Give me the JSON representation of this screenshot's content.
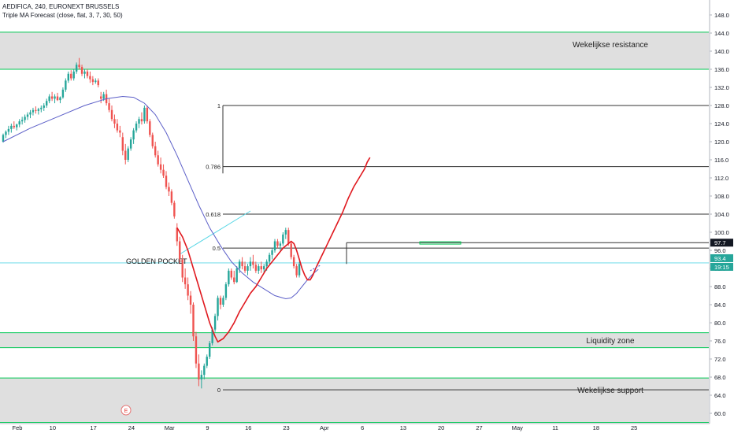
{
  "header": {
    "title": "AEDIFICA, 240, EURONEXT BRUSSELS",
    "indicator": "Triple MA Forecast (close, flat, 3, 7, 30, 50)"
  },
  "chart_data": {
    "type": "candlestick",
    "ylim": [
      58,
      150
    ],
    "y_ticks": [
      "60.0",
      "64.0",
      "68.0",
      "72.0",
      "76.0",
      "80.0",
      "84.0",
      "88.0",
      "92.0",
      "96.0",
      "100.0",
      "104.0",
      "108.0",
      "112.0",
      "116.0",
      "120.0",
      "124.0",
      "128.0",
      "132.0",
      "136.0",
      "140.0",
      "144.0",
      "148.0"
    ],
    "x_ticks": [
      {
        "label": "Feb",
        "idx": 0
      },
      {
        "label": "10",
        "idx": 13
      },
      {
        "label": "17",
        "idx": 28
      },
      {
        "label": "24",
        "idx": 42
      },
      {
        "label": "Mar",
        "idx": 56
      },
      {
        "label": "9",
        "idx": 70
      },
      {
        "label": "16",
        "idx": 85
      },
      {
        "label": "23",
        "idx": 99
      },
      {
        "label": "Apr",
        "idx": 113
      },
      {
        "label": "6",
        "idx": 127
      },
      {
        "label": "13",
        "idx": 142
      },
      {
        "label": "20",
        "idx": 156
      },
      {
        "label": "27",
        "idx": 170
      },
      {
        "label": "May",
        "idx": 184
      },
      {
        "label": "11",
        "idx": 198
      },
      {
        "label": "18",
        "idx": 213
      },
      {
        "label": "25",
        "idx": 227
      }
    ],
    "candles": [
      [
        120,
        121.8,
        119.8,
        121.5
      ],
      [
        121.5,
        122.5,
        120.8,
        122.2
      ],
      [
        122.2,
        123.5,
        121.5,
        122.8
      ],
      [
        122.8,
        124,
        122,
        123.5
      ],
      [
        123.5,
        124.5,
        122.8,
        123.2
      ],
      [
        123.2,
        124,
        122.5,
        123.8
      ],
      [
        123.8,
        125,
        123.2,
        124.5
      ],
      [
        124.5,
        125.5,
        123.8,
        124.8
      ],
      [
        124.8,
        126,
        124.2,
        125.5
      ],
      [
        125.5,
        126.5,
        124.8,
        126
      ],
      [
        126,
        127,
        125.2,
        126.5
      ],
      [
        126.5,
        127.5,
        125.8,
        127
      ],
      [
        127,
        127.8,
        126.2,
        126.8
      ],
      [
        126.8,
        127.5,
        126,
        127.2
      ],
      [
        127.2,
        128,
        126.5,
        127.5
      ],
      [
        127.5,
        128.5,
        126.8,
        128
      ],
      [
        128,
        129.5,
        127.5,
        129
      ],
      [
        129,
        130.5,
        128.5,
        130
      ],
      [
        130,
        131,
        129,
        129.5
      ],
      [
        129.5,
        130.5,
        128.5,
        130
      ],
      [
        130,
        130.8,
        129,
        129.2
      ],
      [
        129.2,
        130,
        128.5,
        129.8
      ],
      [
        129.8,
        132,
        129.5,
        131.5
      ],
      [
        131.5,
        134,
        131,
        133.5
      ],
      [
        133.5,
        135.5,
        133,
        135
      ],
      [
        135,
        135.8,
        133.5,
        134
      ],
      [
        134,
        136,
        133.5,
        135.5
      ],
      [
        135.5,
        137.5,
        135,
        137
      ],
      [
        137,
        138.5,
        136,
        136.5
      ],
      [
        136.5,
        137,
        134.5,
        135
      ],
      [
        135,
        136,
        134,
        135.5
      ],
      [
        135.5,
        136,
        134,
        134.5
      ],
      [
        134.5,
        135.5,
        133,
        133.8
      ],
      [
        133.8,
        134.5,
        132.5,
        133.2
      ],
      [
        133.2,
        134,
        132.8,
        133.5
      ],
      [
        133.5,
        134,
        132,
        132.5
      ],
      [
        130,
        131,
        128.5,
        129.5
      ],
      [
        129.5,
        131,
        129,
        130.5
      ],
      [
        130.5,
        131.5,
        128,
        128.5
      ],
      [
        128.5,
        129.5,
        126.5,
        127
      ],
      [
        127,
        128,
        124.5,
        125
      ],
      [
        125,
        126,
        123,
        124
      ],
      [
        124,
        125,
        122,
        122.5
      ],
      [
        122.5,
        123.5,
        121,
        122
      ],
      [
        121,
        122,
        117,
        118
      ],
      [
        118,
        119.5,
        115,
        116
      ],
      [
        116,
        119,
        115.5,
        118.5
      ],
      [
        118.5,
        121,
        118,
        120.5
      ],
      [
        120.5,
        123,
        119.5,
        122.5
      ],
      [
        122.5,
        124.5,
        122,
        124
      ],
      [
        124,
        125.5,
        123,
        125
      ],
      [
        125,
        126.5,
        123.8,
        124.5
      ],
      [
        124.5,
        128,
        124,
        127.5
      ],
      [
        127.5,
        128,
        124,
        124.5
      ],
      [
        124.5,
        125,
        121,
        121.5
      ],
      [
        121.5,
        122,
        118.5,
        119
      ],
      [
        119,
        120,
        116.5,
        117
      ],
      [
        117,
        118,
        114.5,
        115
      ],
      [
        115,
        116.5,
        113,
        113.8
      ],
      [
        113.8,
        115,
        112,
        112.5
      ],
      [
        112.5,
        113.5,
        109.5,
        110
      ],
      [
        110,
        111,
        108,
        109
      ],
      [
        109,
        109.5,
        106,
        106.5
      ],
      [
        106.5,
        107,
        103,
        103.5
      ],
      [
        101,
        102,
        97,
        98
      ],
      [
        98,
        99,
        93,
        94
      ],
      [
        94,
        95,
        89,
        90
      ],
      [
        90,
        92,
        87.5,
        88.5
      ],
      [
        88.5,
        90,
        85,
        86
      ],
      [
        86,
        87,
        82,
        84
      ],
      [
        84,
        84.5,
        76,
        77
      ],
      [
        77,
        78,
        70,
        71
      ],
      [
        71,
        73,
        66,
        67.5
      ],
      [
        67.5,
        69.5,
        65.5,
        68.5
      ],
      [
        68.5,
        71,
        67.5,
        70.5
      ],
      [
        70.5,
        73,
        70,
        72.5
      ],
      [
        72.5,
        76,
        72,
        75.5
      ],
      [
        75.5,
        79,
        75,
        78.5
      ],
      [
        78.5,
        82,
        78,
        81.5
      ],
      [
        81.5,
        86,
        80.5,
        85.5
      ],
      [
        85.5,
        86,
        83,
        84
      ],
      [
        84,
        86,
        83.5,
        85.5
      ],
      [
        85.5,
        89,
        85,
        88.5
      ],
      [
        88.5,
        92,
        88,
        91.5
      ],
      [
        91.5,
        92,
        89.5,
        90
      ],
      [
        90,
        91.5,
        88.5,
        89
      ],
      [
        89,
        92.5,
        88.8,
        92
      ],
      [
        92,
        94,
        91,
        93.5
      ],
      [
        93.5,
        94.5,
        91.8,
        92.5
      ],
      [
        92.5,
        93.5,
        91,
        91.5
      ],
      [
        91.5,
        93,
        90.5,
        92.5
      ],
      [
        92.5,
        94.5,
        91.5,
        93.5
      ],
      [
        93.5,
        95,
        92,
        92.8
      ],
      [
        92.8,
        93.5,
        91,
        91.5
      ],
      [
        91.5,
        93,
        90.8,
        92.5
      ],
      [
        92.5,
        93.5,
        91,
        91.8
      ],
      [
        91.8,
        93,
        91,
        92.5
      ],
      [
        92.5,
        94,
        91.5,
        93.5
      ],
      [
        93.5,
        95.5,
        93,
        95
      ],
      [
        95,
        96.5,
        94,
        96
      ],
      [
        96,
        98.5,
        95.5,
        98
      ],
      [
        98,
        98.5,
        96.5,
        97
      ],
      [
        97,
        98,
        96,
        97.5
      ],
      [
        97.5,
        100,
        97,
        99.5
      ],
      [
        99.5,
        101,
        98.5,
        100.5
      ],
      [
        100.5,
        101,
        97,
        97.5
      ],
      [
        97.5,
        98,
        94,
        94.5
      ],
      [
        94.5,
        95,
        92,
        92.5
      ],
      [
        92.5,
        93,
        90,
        90.5
      ],
      [
        90.5,
        93.5,
        90,
        93
      ]
    ],
    "red_ma": [
      [
        64,
        101
      ],
      [
        66,
        99
      ],
      [
        68,
        96
      ],
      [
        70,
        92
      ],
      [
        72,
        88
      ],
      [
        74,
        84
      ],
      [
        76,
        80
      ],
      [
        78,
        77
      ],
      [
        79,
        75.8
      ],
      [
        81,
        76.5
      ],
      [
        83,
        78
      ],
      [
        85,
        80
      ],
      [
        87,
        82.5
      ],
      [
        89,
        84.5
      ],
      [
        91,
        86.5
      ],
      [
        93,
        88
      ],
      [
        95,
        90
      ],
      [
        97,
        92
      ],
      [
        99,
        93.5
      ],
      [
        101,
        95
      ],
      [
        103,
        96.5
      ],
      [
        105,
        97.5
      ],
      [
        106,
        98
      ],
      [
        107,
        97.5
      ],
      [
        108,
        96
      ],
      [
        109,
        94
      ],
      [
        110,
        92
      ],
      [
        111,
        90.5
      ],
      [
        112,
        89.5
      ],
      [
        113,
        89.5
      ],
      [
        114,
        90.5
      ],
      [
        115,
        92
      ],
      [
        117,
        94.5
      ],
      [
        119,
        97
      ],
      [
        121,
        99.5
      ],
      [
        123,
        102
      ],
      [
        125,
        104.5
      ],
      [
        127,
        107.5
      ],
      [
        129,
        110
      ],
      [
        131,
        112
      ],
      [
        133,
        114
      ],
      [
        134,
        115.5
      ],
      [
        135,
        116.5
      ]
    ],
    "blue_ma": [
      [
        0,
        120
      ],
      [
        10,
        123
      ],
      [
        20,
        125.5
      ],
      [
        30,
        128
      ],
      [
        38,
        129.5
      ],
      [
        44,
        130
      ],
      [
        48,
        129.8
      ],
      [
        52,
        128.5
      ],
      [
        56,
        126
      ],
      [
        60,
        122
      ],
      [
        64,
        117
      ],
      [
        68,
        111.5
      ],
      [
        72,
        106
      ],
      [
        76,
        101
      ],
      [
        80,
        97
      ],
      [
        84,
        93.5
      ],
      [
        88,
        91
      ],
      [
        92,
        89
      ],
      [
        96,
        87.5
      ],
      [
        100,
        86
      ],
      [
        104,
        85.3
      ],
      [
        106,
        85.5
      ],
      [
        108,
        86.5
      ],
      [
        110,
        88
      ],
      [
        112,
        89.5
      ],
      [
        114,
        90.8
      ],
      [
        116,
        91.8
      ]
    ],
    "zones": [
      {
        "low": 136,
        "high": 144.2,
        "label": "Wekelijkse resistance"
      },
      {
        "low": 74.5,
        "high": 77.8,
        "label": "Liquidity zone"
      },
      {
        "low": 58,
        "high": 67.8,
        "label": "Wekelijkse support"
      }
    ],
    "fib_levels": [
      {
        "label": "1",
        "value": 128
      },
      {
        "label": "0.786",
        "value": 114.5
      },
      {
        "label": "0.618",
        "value": 104
      },
      {
        "label": "0.5",
        "value": 96.5
      },
      {
        "label": "0",
        "value": 65.2
      }
    ],
    "annotations": {
      "golden_pocket": "GOLDEN POCKET",
      "event_marker": "E",
      "price_label_1": "97.7",
      "price_label_2": "93.4",
      "price_label_3": "19:15"
    }
  },
  "colors": {
    "up": "#26a69a",
    "down": "#ef5350",
    "zone_fill": "#d9d9d9",
    "zone_border": "#00c853",
    "red_ma": "#e0191f",
    "blue_ma": "#5c5fc8",
    "cyan_line": "#5ad7e6",
    "fib_line": "#333333"
  }
}
